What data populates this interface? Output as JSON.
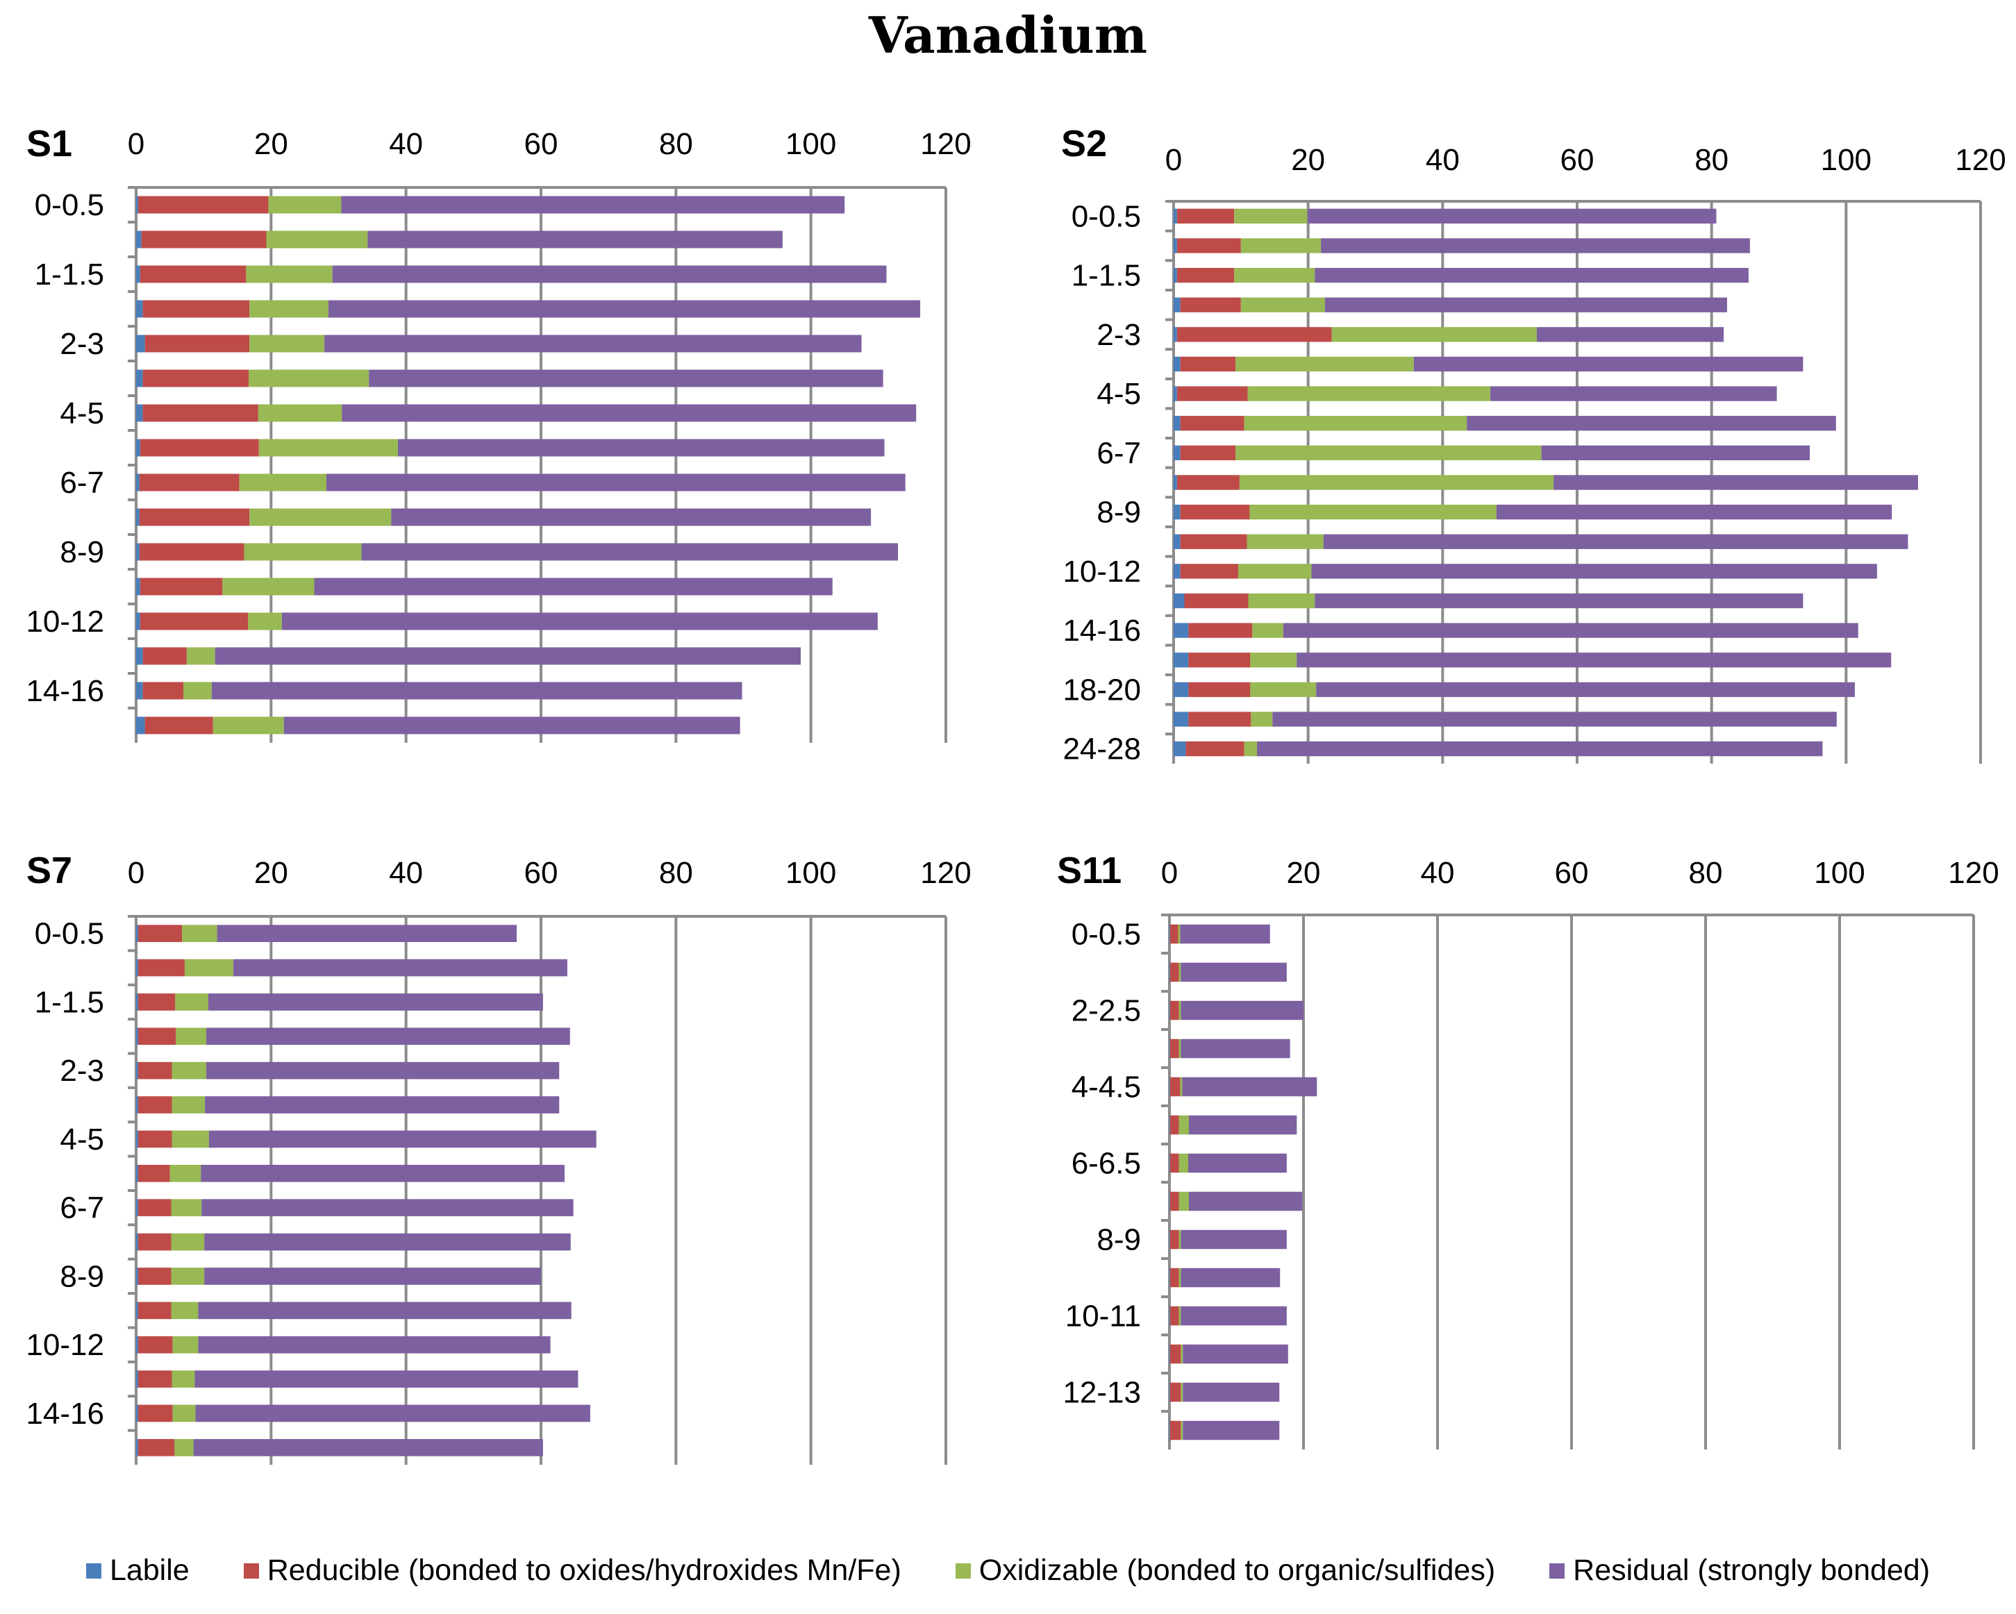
{
  "title": "Vanadium",
  "colors": {
    "Labile": "#4a7ebb",
    "Reducible": "#be4b48",
    "Oxidizable": "#98b954",
    "Residual": "#7d60a0"
  },
  "legend": [
    {
      "key": "Labile",
      "label": "Labile"
    },
    {
      "key": "Reducible",
      "label": "Reducible (bonded to oxides/hydroxides Mn/Fe)"
    },
    {
      "key": "Oxidizable",
      "label": "Oxidizable (bonded to organic/sulfides)"
    },
    {
      "key": "Residual",
      "label": "Residual (strongly bonded)"
    }
  ],
  "chart_data": [
    {
      "type": "bar",
      "stacked": true,
      "orientation": "horizontal",
      "title": "S1",
      "xlim": [
        0,
        120
      ],
      "xticks": [
        0,
        20,
        40,
        60,
        80,
        100,
        120
      ],
      "category_labels": [
        "0-0.5",
        "",
        "1-1.5",
        "",
        "2-3",
        "",
        "4-5",
        "",
        "6-7",
        "",
        "8-9",
        "",
        "10-12",
        "",
        "14-16",
        ""
      ],
      "series": [
        {
          "name": "Labile",
          "values": [
            0.3,
            0.8,
            0.6,
            1.0,
            1.3,
            1.0,
            1.0,
            0.6,
            0.5,
            0.5,
            0.5,
            0.6,
            0.6,
            1.0,
            1.0,
            1.3
          ]
        },
        {
          "name": "Reducible",
          "values": [
            19.3,
            18.5,
            15.7,
            15.8,
            15.5,
            15.7,
            17.1,
            17.6,
            14.8,
            16.3,
            15.5,
            12.2,
            16.0,
            6.5,
            6.0,
            10.1
          ]
        },
        {
          "name": "Oxidizable",
          "values": [
            10.8,
            15.0,
            12.8,
            11.7,
            11.1,
            17.8,
            12.4,
            20.6,
            12.9,
            21.0,
            17.4,
            13.6,
            5.0,
            4.2,
            4.2,
            10.5
          ]
        },
        {
          "name": "Residual",
          "values": [
            74.6,
            61.5,
            82.1,
            87.7,
            79.6,
            76.2,
            85.1,
            72.1,
            85.8,
            71.1,
            79.5,
            76.8,
            88.3,
            86.8,
            78.6,
            67.6
          ]
        }
      ]
    },
    {
      "type": "bar",
      "stacked": true,
      "orientation": "horizontal",
      "title": "S2",
      "xlim": [
        0,
        120
      ],
      "xticks": [
        0,
        20,
        40,
        60,
        80,
        100,
        120
      ],
      "category_labels": [
        "0-0.5",
        "",
        "1-1.5",
        "",
        "2-3",
        "",
        "4-5",
        "",
        "6-7",
        "",
        "8-9",
        "",
        "10-12",
        "",
        "14-16",
        "",
        "18-20",
        "",
        "24-28"
      ],
      "series": [
        {
          "name": "Labile",
          "values": [
            0.5,
            0.5,
            0.5,
            1.0,
            0.5,
            1.0,
            0.5,
            1.0,
            1.0,
            0.5,
            1.0,
            1.0,
            1.0,
            1.6,
            2.2,
            2.2,
            2.2,
            2.2,
            1.8
          ]
        },
        {
          "name": "Reducible",
          "values": [
            8.5,
            9.5,
            8.5,
            9.0,
            23.0,
            8.2,
            10.5,
            9.5,
            8.2,
            9.3,
            10.3,
            9.9,
            8.6,
            9.5,
            9.5,
            9.2,
            9.2,
            9.3,
            8.7
          ]
        },
        {
          "name": "Oxidizable",
          "values": [
            10.9,
            11.9,
            12.0,
            12.5,
            30.5,
            26.5,
            36.1,
            33.1,
            45.5,
            46.7,
            36.7,
            11.4,
            10.9,
            9.9,
            4.6,
            6.9,
            9.8,
            3.2,
            1.9
          ]
        },
        {
          "name": "Residual",
          "values": [
            60.8,
            63.8,
            64.5,
            59.8,
            27.8,
            57.9,
            42.6,
            54.9,
            39.9,
            54.2,
            58.8,
            86.9,
            84.1,
            72.6,
            85.5,
            88.4,
            80.1,
            83.9,
            84.1
          ]
        }
      ]
    },
    {
      "type": "bar",
      "stacked": true,
      "orientation": "horizontal",
      "title": "S7",
      "xlim": [
        0,
        120
      ],
      "xticks": [
        0,
        20,
        40,
        60,
        80,
        100,
        120
      ],
      "category_labels": [
        "0-0.5",
        "",
        "1-1.5",
        "",
        "2-3",
        "",
        "4-5",
        "",
        "6-7",
        "",
        "8-9",
        "",
        "10-12",
        "",
        "14-16",
        ""
      ],
      "series": [
        {
          "name": "Labile",
          "values": [
            0.3,
            0.3,
            0.3,
            0.3,
            0.3,
            0.3,
            0.3,
            0.3,
            0.3,
            0.3,
            0.3,
            0.3,
            0.3,
            0.3,
            0.3,
            0.3
          ]
        },
        {
          "name": "Reducible",
          "values": [
            6.5,
            6.9,
            5.5,
            5.6,
            5.0,
            5.0,
            5.0,
            4.7,
            4.9,
            4.9,
            4.9,
            4.9,
            5.1,
            5.0,
            5.1,
            5.4
          ]
        },
        {
          "name": "Oxidizable",
          "values": [
            5.2,
            7.2,
            4.9,
            4.5,
            5.1,
            4.9,
            5.5,
            4.6,
            4.5,
            4.9,
            4.9,
            4.0,
            3.8,
            3.4,
            3.4,
            2.8
          ]
        },
        {
          "name": "Residual",
          "values": [
            44.4,
            49.5,
            49.6,
            53.9,
            52.3,
            52.5,
            57.4,
            53.9,
            55.1,
            54.3,
            49.9,
            55.3,
            52.2,
            56.8,
            58.5,
            51.8
          ]
        }
      ]
    },
    {
      "type": "bar",
      "stacked": true,
      "orientation": "horizontal",
      "title": "S11",
      "xlim": [
        0,
        120
      ],
      "xticks": [
        0,
        20,
        40,
        60,
        80,
        100,
        120
      ],
      "category_labels": [
        "0-0.5",
        "",
        "2-2.5",
        "",
        "4-4.5",
        "",
        "6-6.5",
        "",
        "8-9",
        "",
        "10-11",
        "",
        "12-13",
        ""
      ],
      "series": [
        {
          "name": "Labile",
          "values": [
            0.1,
            0.1,
            0.1,
            0.1,
            0.1,
            0.1,
            0.1,
            0.1,
            0.1,
            0.1,
            0.1,
            0.1,
            0.1,
            0.1
          ]
        },
        {
          "name": "Reducible",
          "values": [
            1.2,
            1.3,
            1.3,
            1.3,
            1.5,
            1.3,
            1.3,
            1.3,
            1.3,
            1.3,
            1.3,
            1.6,
            1.6,
            1.6
          ]
        },
        {
          "name": "Oxidizable",
          "values": [
            0.3,
            0.3,
            0.3,
            0.3,
            0.3,
            1.5,
            1.4,
            1.5,
            0.3,
            0.3,
            0.3,
            0.3,
            0.3,
            0.3
          ]
        },
        {
          "name": "Residual",
          "values": [
            13.4,
            15.8,
            18.3,
            16.3,
            20.1,
            16.1,
            14.7,
            16.9,
            15.8,
            14.8,
            15.8,
            15.7,
            14.4,
            14.4
          ]
        }
      ]
    }
  ]
}
